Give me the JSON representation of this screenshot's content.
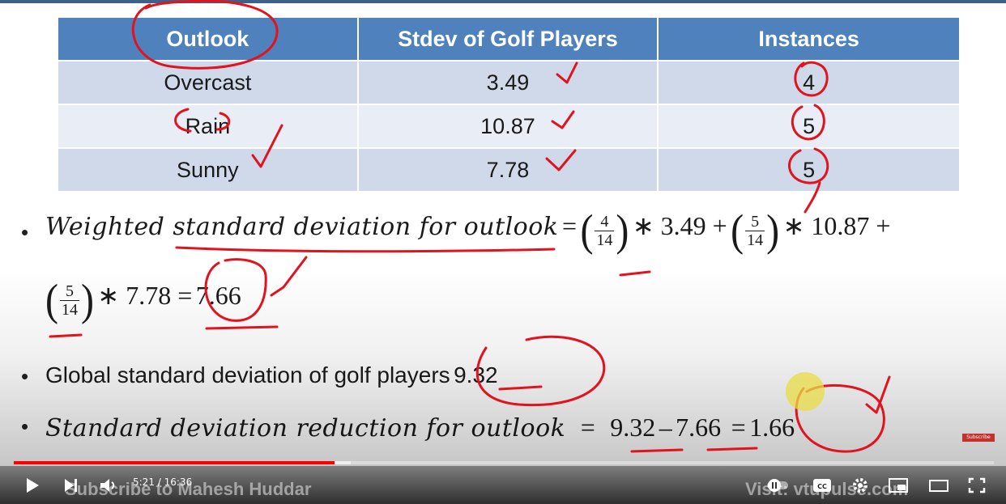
{
  "table": {
    "headers": [
      "Outlook",
      "Stdev of Golf Players",
      "Instances"
    ],
    "rows": [
      {
        "outlook": "Overcast",
        "stdev": "3.49",
        "instances": "4"
      },
      {
        "outlook": "Rain",
        "stdev": "10.87",
        "instances": "5"
      },
      {
        "outlook": "Sunny",
        "stdev": "7.78",
        "instances": "5"
      }
    ]
  },
  "bullets": {
    "b1_label": "Weighted standard deviation for outlook",
    "b1_eq": "=",
    "b1_f1_num": "4",
    "b1_f1_den": "14",
    "b1_t1": "∗ 3.49 +",
    "b1_f2_num": "5",
    "b1_f2_den": "14",
    "b1_t2": "∗ 10.87 +",
    "b1_f3_num": "5",
    "b1_f3_den": "14",
    "b1_t3": "∗ 7.78 =",
    "b1_result": "7.66",
    "b2_text": "Global standard deviation of golf players",
    "b2_value": "9.32",
    "b3_label": "Standard deviation reduction for outlook",
    "b3_eq1": "=",
    "b3_a": "9.32",
    "b3_minus": "–",
    "b3_b": "7.66",
    "b3_eq2": "=",
    "b3_result": "1.66"
  },
  "badge": "Subscribe",
  "player": {
    "time": "5:21 / 16:36",
    "overlay_left": "Subscribe to Mahesh Huddar",
    "overlay_right": "Visit: vtupulse.com",
    "progress_played": 0.327,
    "colors": {
      "progress": "#ff0000",
      "header": "#4f81bd",
      "annotation": "#e0131f"
    }
  }
}
